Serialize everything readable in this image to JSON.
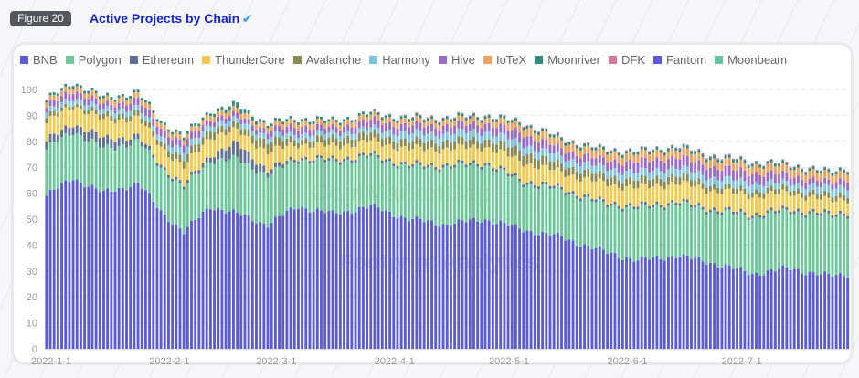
{
  "figure": {
    "badge": "Figure 20",
    "title": "Active Projects by Chain",
    "title_icon": "check-mark-icon"
  },
  "watermarks": [
    "CoinMarketCap",
    "Footprint Analytics"
  ],
  "chart_data": {
    "type": "bar",
    "stacked": true,
    "title": "Active Projects by Chain",
    "xlabel": "",
    "ylabel": "",
    "ylim": [
      0,
      105
    ],
    "yticks": [
      "0",
      "10",
      "20",
      "30",
      "40",
      "50",
      "60",
      "70",
      "80",
      "90",
      "100"
    ],
    "xticks": [
      "2022-1-1",
      "2022-2-1",
      "2022-3-1",
      "2022-4-1",
      "2022-5-1",
      "2022-6-1",
      "2022-7-1"
    ],
    "xtick_days": [
      0,
      31,
      59,
      90,
      120,
      151,
      181
    ],
    "grid": "horizontal-dashed",
    "legend_position": "top-left",
    "start_date": "2022-1-1",
    "num_days": 211,
    "sample_days": [
      0,
      7,
      15,
      24,
      30,
      36,
      43,
      50,
      58,
      66,
      75,
      85,
      95,
      105,
      115,
      125,
      135,
      145,
      155,
      165,
      175,
      185,
      195,
      205,
      210
    ],
    "series": [
      {
        "name": "BNB",
        "color": "#5b5bd6",
        "values": [
          59,
          66,
          60,
          64,
          53,
          45,
          55,
          52,
          48,
          55,
          52,
          55,
          50,
          48,
          50,
          46,
          43,
          38,
          34,
          36,
          33,
          29,
          31,
          28,
          29
        ]
      },
      {
        "name": "Polygon",
        "color": "#6cc79a",
        "values": [
          18,
          18,
          17,
          16,
          17,
          17,
          18,
          21,
          19,
          18,
          20,
          19,
          20,
          22,
          21,
          18,
          18,
          18,
          20,
          20,
          20,
          22,
          22,
          23,
          23
        ]
      },
      {
        "name": "Ethereum",
        "color": "#5f6f96",
        "values": [
          3,
          3,
          4,
          2,
          1,
          1,
          2,
          6,
          2,
          1,
          1,
          1,
          1,
          1,
          1,
          1,
          1,
          1,
          1,
          1,
          1,
          1,
          1,
          1,
          1
        ]
      },
      {
        "name": "ThunderCore",
        "color": "#f2c94c",
        "values": [
          7,
          7,
          7,
          7,
          7,
          7,
          7,
          5,
          7,
          5,
          5,
          5,
          6,
          6,
          6,
          7,
          6,
          7,
          7,
          7,
          7,
          7,
          6,
          5,
          5
        ]
      },
      {
        "name": "Avalanche",
        "color": "#8a8a52",
        "values": [
          2,
          1,
          2,
          2,
          2,
          3,
          3,
          2,
          4,
          2,
          3,
          3,
          3,
          3,
          3,
          4,
          3,
          3,
          3,
          3,
          2,
          2,
          2,
          2,
          2
        ]
      },
      {
        "name": "Harmony",
        "color": "#7ec4e0",
        "values": [
          2,
          2,
          2,
          2,
          2,
          3,
          2,
          2,
          2,
          2,
          2,
          2,
          3,
          3,
          3,
          3,
          3,
          3,
          3,
          3,
          3,
          3,
          2,
          3,
          3
        ]
      },
      {
        "name": "Hive",
        "color": "#9b6bc9",
        "values": [
          2,
          3,
          2,
          3,
          3,
          3,
          2,
          2,
          2,
          3,
          2,
          3,
          3,
          3,
          3,
          4,
          3,
          3,
          4,
          4,
          4,
          4,
          3,
          2,
          3
        ]
      },
      {
        "name": "IoTeX",
        "color": "#f0a05a",
        "values": [
          2,
          2,
          2,
          2,
          2,
          2,
          2,
          2,
          2,
          2,
          2,
          2,
          2,
          2,
          2,
          3,
          3,
          3,
          3,
          3,
          3,
          3,
          3,
          3,
          3
        ]
      },
      {
        "name": "Moonriver",
        "color": "#2f8a80",
        "values": [
          1,
          1,
          1,
          1,
          1,
          1,
          1,
          2,
          1,
          1,
          1,
          1,
          1,
          1,
          1,
          1,
          1,
          1,
          1,
          1,
          1,
          1,
          1,
          1,
          1
        ]
      },
      {
        "name": "DFK",
        "color": "#d07a9e",
        "values": [
          0,
          0,
          0,
          0,
          0,
          0,
          0,
          0,
          0,
          0,
          0,
          0,
          0.3,
          0.3,
          0.3,
          0.3,
          0.3,
          0.3,
          0.3,
          0.3,
          0.3,
          0.3,
          0.3,
          0.3,
          0.3
        ]
      },
      {
        "name": "Fantom",
        "color": "#5a5ae0",
        "values": [
          0,
          0,
          0,
          0,
          0,
          0,
          0,
          0,
          0,
          0,
          0,
          0,
          0,
          0,
          0,
          0,
          0,
          0,
          0,
          0,
          0.2,
          0,
          0,
          0,
          0
        ]
      },
      {
        "name": "Moonbeam",
        "color": "#66c39a",
        "values": [
          0,
          0,
          0,
          0,
          0,
          0,
          0,
          0,
          0,
          0,
          0,
          0,
          0,
          0,
          0,
          0,
          0,
          0,
          0,
          0,
          0,
          0,
          0,
          0,
          0
        ]
      }
    ]
  }
}
